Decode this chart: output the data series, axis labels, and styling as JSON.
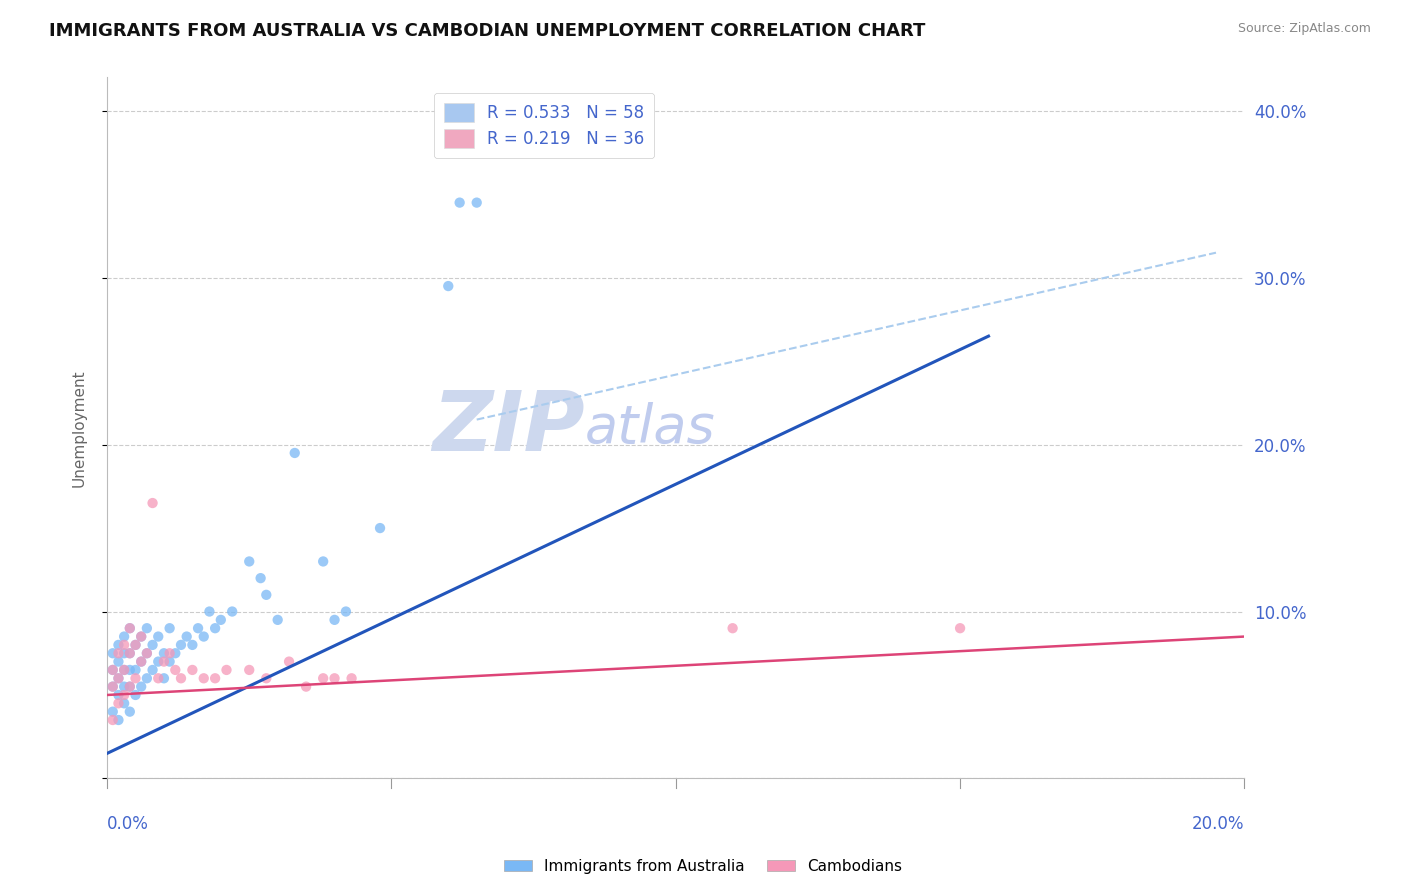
{
  "title": "IMMIGRANTS FROM AUSTRALIA VS CAMBODIAN UNEMPLOYMENT CORRELATION CHART",
  "source_text": "Source: ZipAtlas.com",
  "ylabel": "Unemployment",
  "xmin": 0.0,
  "xmax": 0.2,
  "ymin": 0.0,
  "ymax": 0.42,
  "yticks": [
    0.0,
    0.1,
    0.2,
    0.3,
    0.4
  ],
  "ytick_labels": [
    "",
    "10.0%",
    "20.0%",
    "30.0%",
    "40.0%"
  ],
  "watermark_zip": "ZIP",
  "watermark_atlas": "atlas",
  "legend_entries": [
    {
      "label": "R = 0.533   N = 58",
      "color": "#a8c8f0"
    },
    {
      "label": "R = 0.219   N = 36",
      "color": "#f0a8c0"
    }
  ],
  "blue_scatter": [
    [
      0.001,
      0.04
    ],
    [
      0.001,
      0.055
    ],
    [
      0.001,
      0.065
    ],
    [
      0.001,
      0.075
    ],
    [
      0.002,
      0.035
    ],
    [
      0.002,
      0.05
    ],
    [
      0.002,
      0.06
    ],
    [
      0.002,
      0.07
    ],
    [
      0.002,
      0.08
    ],
    [
      0.003,
      0.045
    ],
    [
      0.003,
      0.055
    ],
    [
      0.003,
      0.065
    ],
    [
      0.003,
      0.075
    ],
    [
      0.003,
      0.085
    ],
    [
      0.004,
      0.04
    ],
    [
      0.004,
      0.055
    ],
    [
      0.004,
      0.065
    ],
    [
      0.004,
      0.075
    ],
    [
      0.004,
      0.09
    ],
    [
      0.005,
      0.05
    ],
    [
      0.005,
      0.065
    ],
    [
      0.005,
      0.08
    ],
    [
      0.006,
      0.055
    ],
    [
      0.006,
      0.07
    ],
    [
      0.006,
      0.085
    ],
    [
      0.007,
      0.06
    ],
    [
      0.007,
      0.075
    ],
    [
      0.007,
      0.09
    ],
    [
      0.008,
      0.065
    ],
    [
      0.008,
      0.08
    ],
    [
      0.009,
      0.07
    ],
    [
      0.009,
      0.085
    ],
    [
      0.01,
      0.06
    ],
    [
      0.01,
      0.075
    ],
    [
      0.011,
      0.07
    ],
    [
      0.011,
      0.09
    ],
    [
      0.012,
      0.075
    ],
    [
      0.013,
      0.08
    ],
    [
      0.014,
      0.085
    ],
    [
      0.015,
      0.08
    ],
    [
      0.016,
      0.09
    ],
    [
      0.017,
      0.085
    ],
    [
      0.018,
      0.1
    ],
    [
      0.019,
      0.09
    ],
    [
      0.02,
      0.095
    ],
    [
      0.022,
      0.1
    ],
    [
      0.025,
      0.13
    ],
    [
      0.027,
      0.12
    ],
    [
      0.028,
      0.11
    ],
    [
      0.03,
      0.095
    ],
    [
      0.033,
      0.195
    ],
    [
      0.038,
      0.13
    ],
    [
      0.04,
      0.095
    ],
    [
      0.042,
      0.1
    ],
    [
      0.048,
      0.15
    ],
    [
      0.06,
      0.295
    ],
    [
      0.062,
      0.345
    ],
    [
      0.065,
      0.345
    ]
  ],
  "pink_scatter": [
    [
      0.001,
      0.035
    ],
    [
      0.001,
      0.055
    ],
    [
      0.001,
      0.065
    ],
    [
      0.002,
      0.045
    ],
    [
      0.002,
      0.06
    ],
    [
      0.002,
      0.075
    ],
    [
      0.003,
      0.05
    ],
    [
      0.003,
      0.065
    ],
    [
      0.003,
      0.08
    ],
    [
      0.004,
      0.055
    ],
    [
      0.004,
      0.075
    ],
    [
      0.004,
      0.09
    ],
    [
      0.005,
      0.06
    ],
    [
      0.005,
      0.08
    ],
    [
      0.006,
      0.07
    ],
    [
      0.006,
      0.085
    ],
    [
      0.007,
      0.075
    ],
    [
      0.008,
      0.165
    ],
    [
      0.009,
      0.06
    ],
    [
      0.01,
      0.07
    ],
    [
      0.011,
      0.075
    ],
    [
      0.012,
      0.065
    ],
    [
      0.013,
      0.06
    ],
    [
      0.015,
      0.065
    ],
    [
      0.017,
      0.06
    ],
    [
      0.019,
      0.06
    ],
    [
      0.021,
      0.065
    ],
    [
      0.025,
      0.065
    ],
    [
      0.028,
      0.06
    ],
    [
      0.032,
      0.07
    ],
    [
      0.035,
      0.055
    ],
    [
      0.038,
      0.06
    ],
    [
      0.04,
      0.06
    ],
    [
      0.043,
      0.06
    ],
    [
      0.11,
      0.09
    ],
    [
      0.15,
      0.09
    ]
  ],
  "blue_line": {
    "x0": 0.0,
    "y0": 0.015,
    "x1": 0.155,
    "y1": 0.265
  },
  "pink_line": {
    "x0": 0.0,
    "y0": 0.05,
    "x1": 0.2,
    "y1": 0.085
  },
  "blue_dash_line": {
    "x0": 0.065,
    "y0": 0.215,
    "x1": 0.195,
    "y1": 0.315
  },
  "blue_color": "#7ab8f5",
  "pink_color": "#f598b8",
  "blue_line_color": "#2255bb",
  "pink_line_color": "#dd4477",
  "blue_dash_color": "#aaccee",
  "scatter_size": 55,
  "scatter_alpha": 0.75,
  "title_fontsize": 13,
  "axis_label_color": "#4466cc",
  "grid_color": "#cccccc",
  "watermark_zip_color": "#cdd8ee",
  "watermark_atlas_color": "#c0ccee",
  "watermark_fontsize": 60
}
